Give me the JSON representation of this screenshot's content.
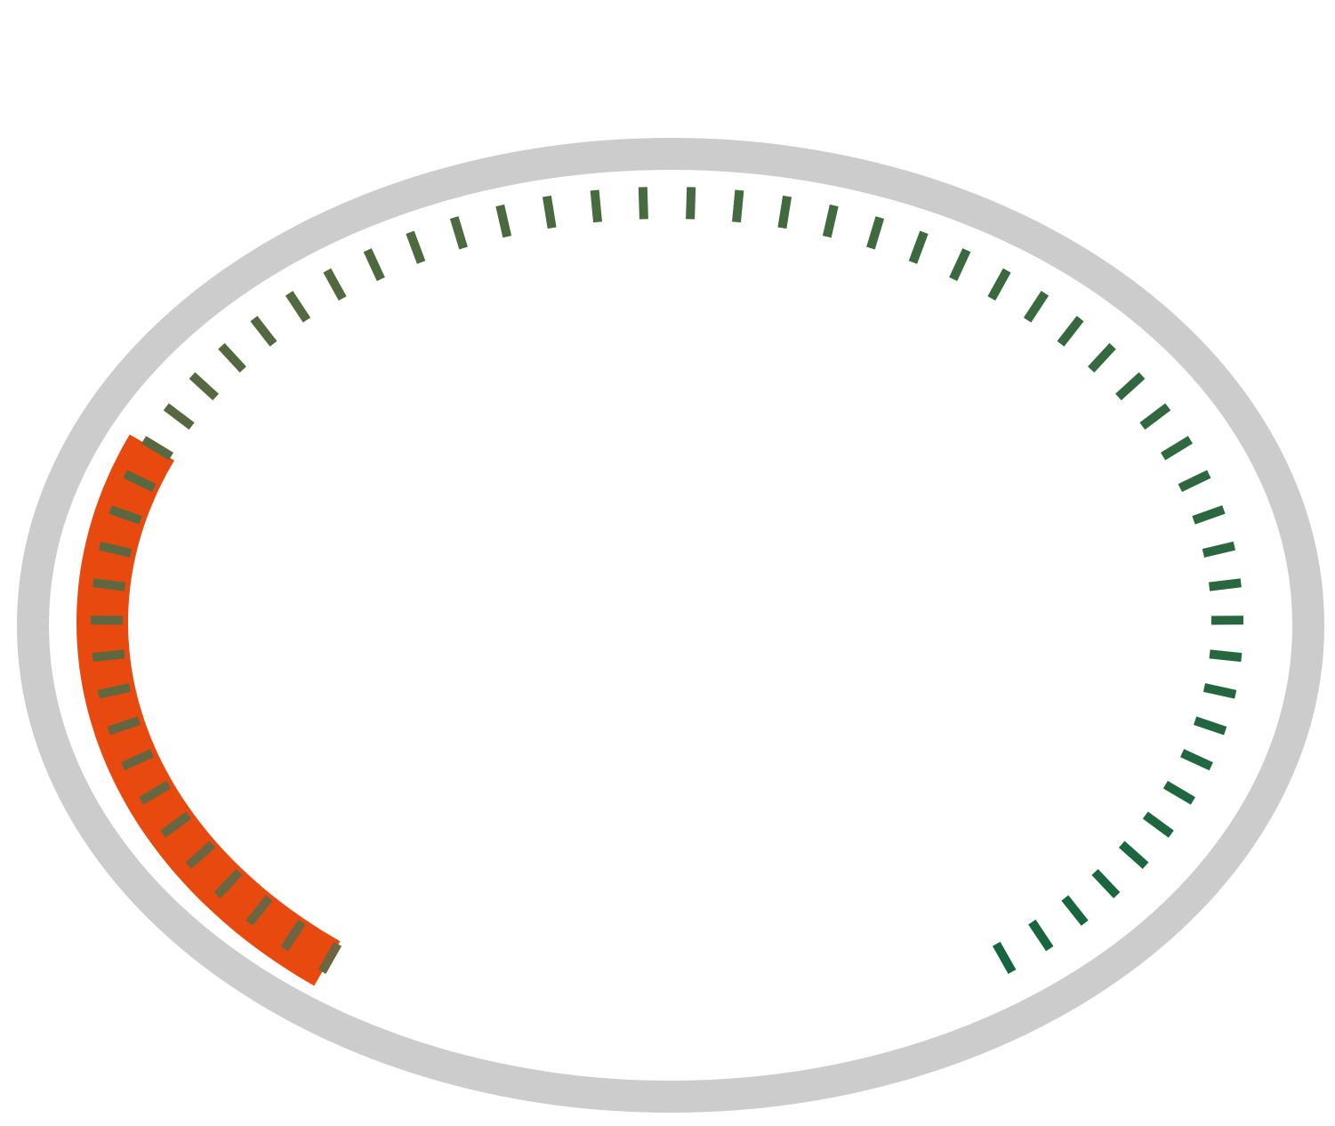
{
  "gauge": {
    "value_fraction": 0.27,
    "tick_count": 60,
    "colors": {
      "bezel": "#cccccc",
      "background": "#ffffff",
      "progress_arc": "#e8490f",
      "tick_start": "#6e6541",
      "tick_mid": "#466a3f",
      "tick_end": "#15663f"
    },
    "icons": {
      "bezel": "gauge-bezel-ring",
      "progress": "gauge-progress-arc",
      "ticks": "gauge-tick-marks"
    }
  }
}
